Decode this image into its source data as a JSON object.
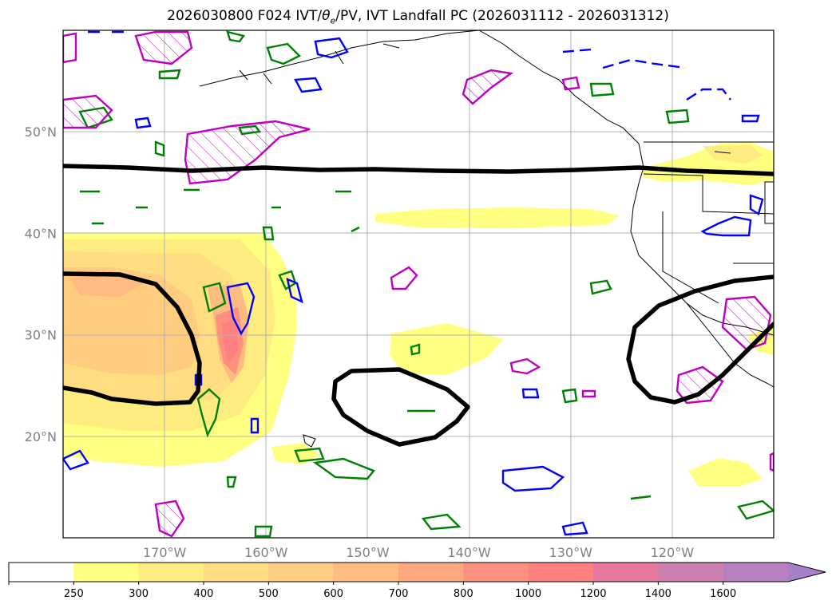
{
  "title": {
    "prefix": "2026030800 F024 IVT/",
    "theta": "θ",
    "theta_sub": "e",
    "suffix": "/PV, IVT Landfall PC (2026031112 - 2026031312)"
  },
  "map": {
    "projection": "PlateCarree",
    "lon_range": [
      -180,
      -110
    ],
    "lat_range": [
      10,
      60
    ],
    "gridlines": true,
    "lat_labels": [
      {
        "lat": 50,
        "label": "50°N"
      },
      {
        "lat": 40,
        "label": "40°N"
      },
      {
        "lat": 30,
        "label": "30°N"
      },
      {
        "lat": 20,
        "label": "20°N"
      }
    ],
    "lon_labels": [
      {
        "lon": -170,
        "label": "170°W"
      },
      {
        "lon": -160,
        "label": "160°W"
      },
      {
        "lon": -150,
        "label": "150°W"
      },
      {
        "lon": -140,
        "label": "140°W"
      },
      {
        "lon": -130,
        "label": "130°W"
      },
      {
        "lon": -120,
        "label": "120°W"
      }
    ],
    "contour_colors": {
      "pc_contour": "#000000",
      "theta_e": "#008000",
      "pv_positive": "#c000c0",
      "pv_negative": "#0000ff"
    }
  },
  "colorbar": {
    "levels": [
      "250",
      "300",
      "400",
      "500",
      "600",
      "700",
      "800",
      "1000",
      "1200",
      "1400",
      "1600"
    ],
    "colors": [
      "#ffffff",
      "#ffff80",
      "#ffec80",
      "#ffdd80",
      "#ffcc80",
      "#ffbb80",
      "#ffa880",
      "#ff9080",
      "#ff8080",
      "#e878a0",
      "#cc80b0",
      "#b880c0",
      "#a880c8"
    ],
    "extend": "max"
  }
}
